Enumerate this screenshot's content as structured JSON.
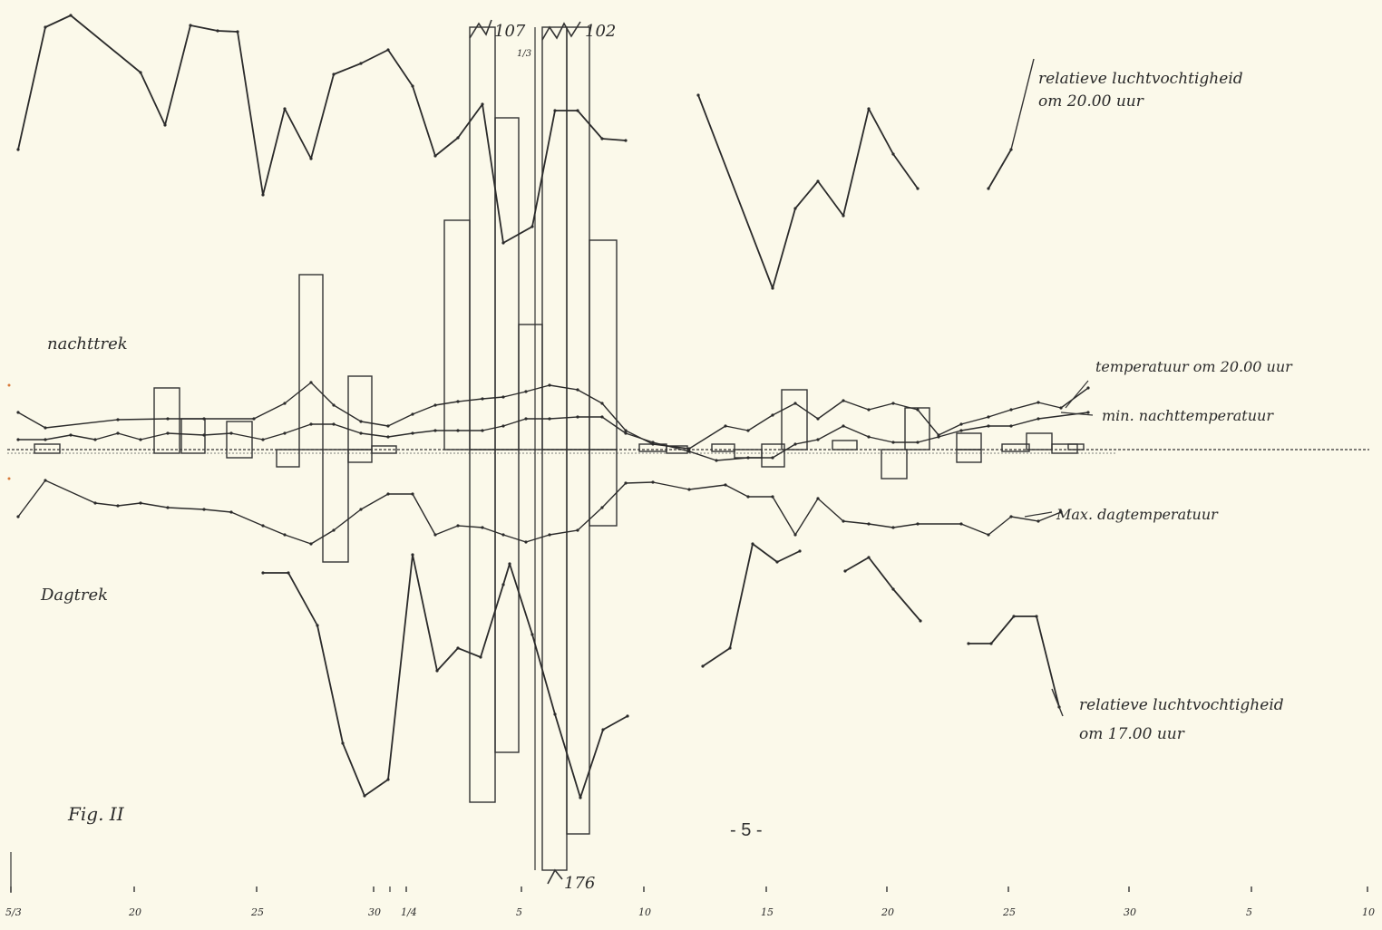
{
  "page_number": "- 5 -",
  "chart_data": {
    "type": "line",
    "title": "",
    "figure_label": "Fig. II",
    "xlabel": "",
    "ylabel": "",
    "x_tick_labels": [
      "5/3",
      "20",
      "25",
      "30",
      "1/4",
      "5",
      "10",
      "15",
      "20",
      "25",
      "30",
      "5",
      "10"
    ],
    "bar_labels": {
      "top_left": "107",
      "top_left_sub": "1/3",
      "top_right": "102",
      "bottom": "176"
    },
    "region_labels": {
      "upper": "nachttrek",
      "lower": "Dagtrek"
    },
    "series": [
      {
        "name": "relatieve luchtvochtigheid om 20.00 uur",
        "segments": [
          [
            [
              20,
              165
            ],
            [
              50,
              30
            ],
            [
              78,
              17
            ],
            [
              155,
              80
            ],
            [
              182,
              138
            ],
            [
              210,
              28
            ],
            [
              240,
              34
            ],
            [
              262,
              35
            ],
            [
              290,
              215
            ],
            [
              314,
              120
            ],
            [
              343,
              175
            ],
            [
              368,
              82
            ],
            [
              398,
              70
            ],
            [
              428,
              55
            ],
            [
              455,
              95
            ],
            [
              480,
              172
            ],
            [
              505,
              152
            ],
            [
              532,
              115
            ],
            [
              555,
              268
            ],
            [
              587,
              250
            ],
            [
              612,
              122
            ],
            [
              637,
              122
            ],
            [
              664,
              153
            ],
            [
              690,
              155
            ]
          ],
          [
            [
              770,
              105
            ],
            [
              852,
              318
            ],
            [
              877,
              230
            ],
            [
              902,
              200
            ],
            [
              930,
              238
            ],
            [
              958,
              120
            ],
            [
              985,
              170
            ],
            [
              1012,
              208
            ]
          ],
          [
            [
              1090,
              208
            ],
            [
              1115,
              165
            ]
          ]
        ]
      },
      {
        "name": "temperatuur om 20.00 uur",
        "segments": [
          [
            [
              20,
              455
            ],
            [
              50,
              472
            ],
            [
              130,
              463
            ],
            [
              185,
              462
            ],
            [
              225,
              462
            ],
            [
              280,
              462
            ],
            [
              314,
              445
            ],
            [
              343,
              422
            ],
            [
              368,
              447
            ],
            [
              398,
              465
            ],
            [
              428,
              470
            ],
            [
              455,
              457
            ],
            [
              480,
              447
            ],
            [
              505,
              443
            ],
            [
              532,
              440
            ],
            [
              555,
              438
            ],
            [
              580,
              432
            ],
            [
              606,
              425
            ],
            [
              637,
              430
            ],
            [
              664,
              445
            ],
            [
              690,
              475
            ],
            [
              720,
              490
            ],
            [
              760,
              495
            ],
            [
              800,
              470
            ],
            [
              825,
              475
            ],
            [
              852,
              458
            ],
            [
              877,
              445
            ],
            [
              902,
              462
            ],
            [
              930,
              442
            ],
            [
              958,
              452
            ],
            [
              985,
              445
            ],
            [
              1012,
              452
            ],
            [
              1035,
              480
            ],
            [
              1060,
              468
            ],
            [
              1090,
              460
            ],
            [
              1115,
              452
            ],
            [
              1145,
              444
            ],
            [
              1170,
              450
            ],
            [
              1200,
              428
            ]
          ]
        ]
      },
      {
        "name": "min. nachttemperatuur",
        "segments": [
          [
            [
              20,
              485
            ],
            [
              50,
              485
            ],
            [
              78,
              480
            ],
            [
              105,
              485
            ],
            [
              130,
              478
            ],
            [
              155,
              485
            ],
            [
              185,
              478
            ],
            [
              225,
              480
            ],
            [
              255,
              478
            ],
            [
              290,
              485
            ],
            [
              314,
              478
            ],
            [
              343,
              468
            ],
            [
              368,
              468
            ],
            [
              398,
              478
            ],
            [
              428,
              482
            ],
            [
              455,
              478
            ],
            [
              480,
              475
            ],
            [
              505,
              475
            ],
            [
              532,
              475
            ],
            [
              555,
              470
            ],
            [
              580,
              462
            ],
            [
              606,
              462
            ],
            [
              637,
              460
            ],
            [
              664,
              460
            ],
            [
              690,
              478
            ],
            [
              720,
              488
            ],
            [
              760,
              498
            ],
            [
              790,
              508
            ],
            [
              825,
              505
            ],
            [
              852,
              505
            ],
            [
              877,
              490
            ],
            [
              902,
              485
            ],
            [
              930,
              470
            ],
            [
              958,
              482
            ],
            [
              985,
              488
            ],
            [
              1012,
              488
            ],
            [
              1035,
              482
            ],
            [
              1060,
              475
            ],
            [
              1090,
              470
            ],
            [
              1115,
              470
            ],
            [
              1145,
              462
            ],
            [
              1200,
              455
            ]
          ]
        ]
      },
      {
        "name": "Max. dagtemperatuur",
        "segments": [
          [
            [
              20,
              570
            ],
            [
              50,
              530
            ],
            [
              105,
              555
            ],
            [
              130,
              558
            ],
            [
              155,
              555
            ],
            [
              185,
              560
            ],
            [
              225,
              562
            ],
            [
              255,
              565
            ],
            [
              290,
              580
            ],
            [
              314,
              590
            ],
            [
              343,
              600
            ],
            [
              368,
              585
            ],
            [
              398,
              562
            ],
            [
              428,
              545
            ],
            [
              455,
              545
            ],
            [
              480,
              590
            ],
            [
              505,
              580
            ],
            [
              532,
              582
            ],
            [
              555,
              590
            ],
            [
              580,
              598
            ],
            [
              606,
              590
            ],
            [
              637,
              585
            ],
            [
              664,
              560
            ],
            [
              690,
              533
            ],
            [
              720,
              532
            ],
            [
              760,
              540
            ],
            [
              800,
              535
            ],
            [
              825,
              548
            ],
            [
              852,
              548
            ],
            [
              877,
              590
            ],
            [
              902,
              550
            ],
            [
              930,
              575
            ],
            [
              958,
              578
            ],
            [
              985,
              582
            ],
            [
              1012,
              578
            ],
            [
              1060,
              578
            ],
            [
              1090,
              590
            ],
            [
              1115,
              570
            ],
            [
              1145,
              575
            ],
            [
              1170,
              565
            ]
          ]
        ]
      },
      {
        "name": "relatieve luchtvochtigheid om 17.00 uur",
        "segments": [
          [
            [
              290,
              632
            ],
            [
              318,
              632
            ],
            [
              350,
              690
            ],
            [
              378,
              820
            ],
            [
              402,
              878
            ],
            [
              428,
              860
            ],
            [
              455,
              612
            ],
            [
              482,
              740
            ],
            [
              505,
              715
            ],
            [
              530,
              725
            ],
            [
              555,
              645
            ],
            [
              562,
              622
            ],
            [
              587,
              700
            ],
            [
              612,
              788
            ],
            [
              640,
              880
            ],
            [
              665,
              805
            ],
            [
              692,
              790
            ]
          ],
          [
            [
              775,
              735
            ],
            [
              805,
              715
            ],
            [
              830,
              600
            ],
            [
              857,
              620
            ],
            [
              882,
              608
            ]
          ],
          [
            [
              932,
              630
            ],
            [
              958,
              615
            ],
            [
              985,
              650
            ],
            [
              1015,
              685
            ]
          ],
          [
            [
              1068,
              710
            ],
            [
              1093,
              710
            ],
            [
              1118,
              680
            ],
            [
              1143,
              680
            ],
            [
              1168,
              780
            ]
          ]
        ]
      }
    ],
    "bars": {
      "description": "nightly and daily migration counts relative to baseline",
      "baseline": "y=496",
      "items_note": "bars drawn above baseline = nachttrek, below = dagtrek"
    }
  }
}
